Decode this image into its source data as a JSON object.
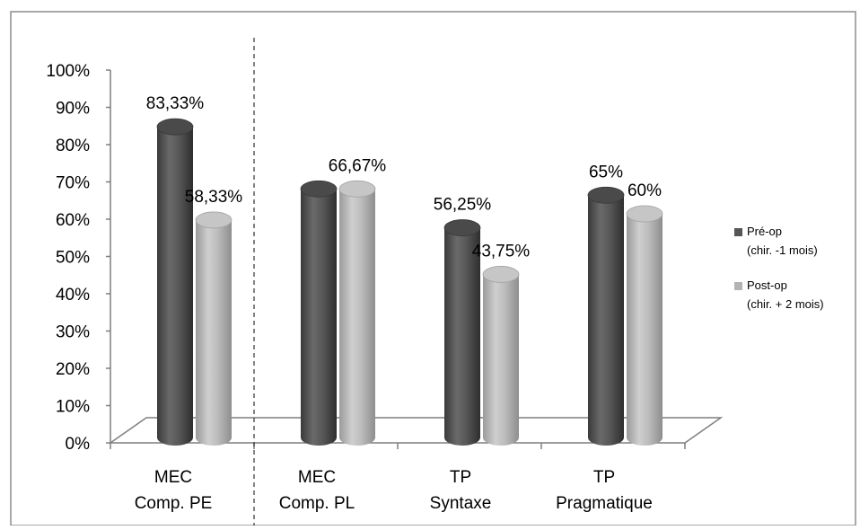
{
  "chart_data": {
    "type": "bar",
    "categories": [
      {
        "line1": "MEC",
        "line2": "Comp. PE"
      },
      {
        "line1": "MEC",
        "line2": "Comp. PL"
      },
      {
        "line1": "TP",
        "line2": "Syntaxe"
      },
      {
        "line1": "TP",
        "line2": "Pragmatique"
      }
    ],
    "series": [
      {
        "name_line1": "Pré-op",
        "name_line2": "(chir. -1 mois)",
        "color": "#555555",
        "values": [
          83.33,
          66.67,
          56.25,
          65
        ],
        "labels": [
          "83,33%",
          "",
          "56,25%",
          "65%"
        ]
      },
      {
        "name_line1": "Post-op",
        "name_line2": "(chir. + 2 mois)",
        "color": "#b3b3b3",
        "values": [
          58.33,
          66.67,
          43.75,
          60
        ],
        "labels": [
          "58,33%",
          "66,67%",
          "43,75%",
          "60%"
        ]
      }
    ],
    "yticks": [
      "0%",
      "10%",
      "20%",
      "30%",
      "40%",
      "50%",
      "60%",
      "70%",
      "80%",
      "90%",
      "100%"
    ],
    "ylim": [
      0,
      100
    ],
    "separator_after_category": 0,
    "legend_position": "right",
    "grid": false
  }
}
